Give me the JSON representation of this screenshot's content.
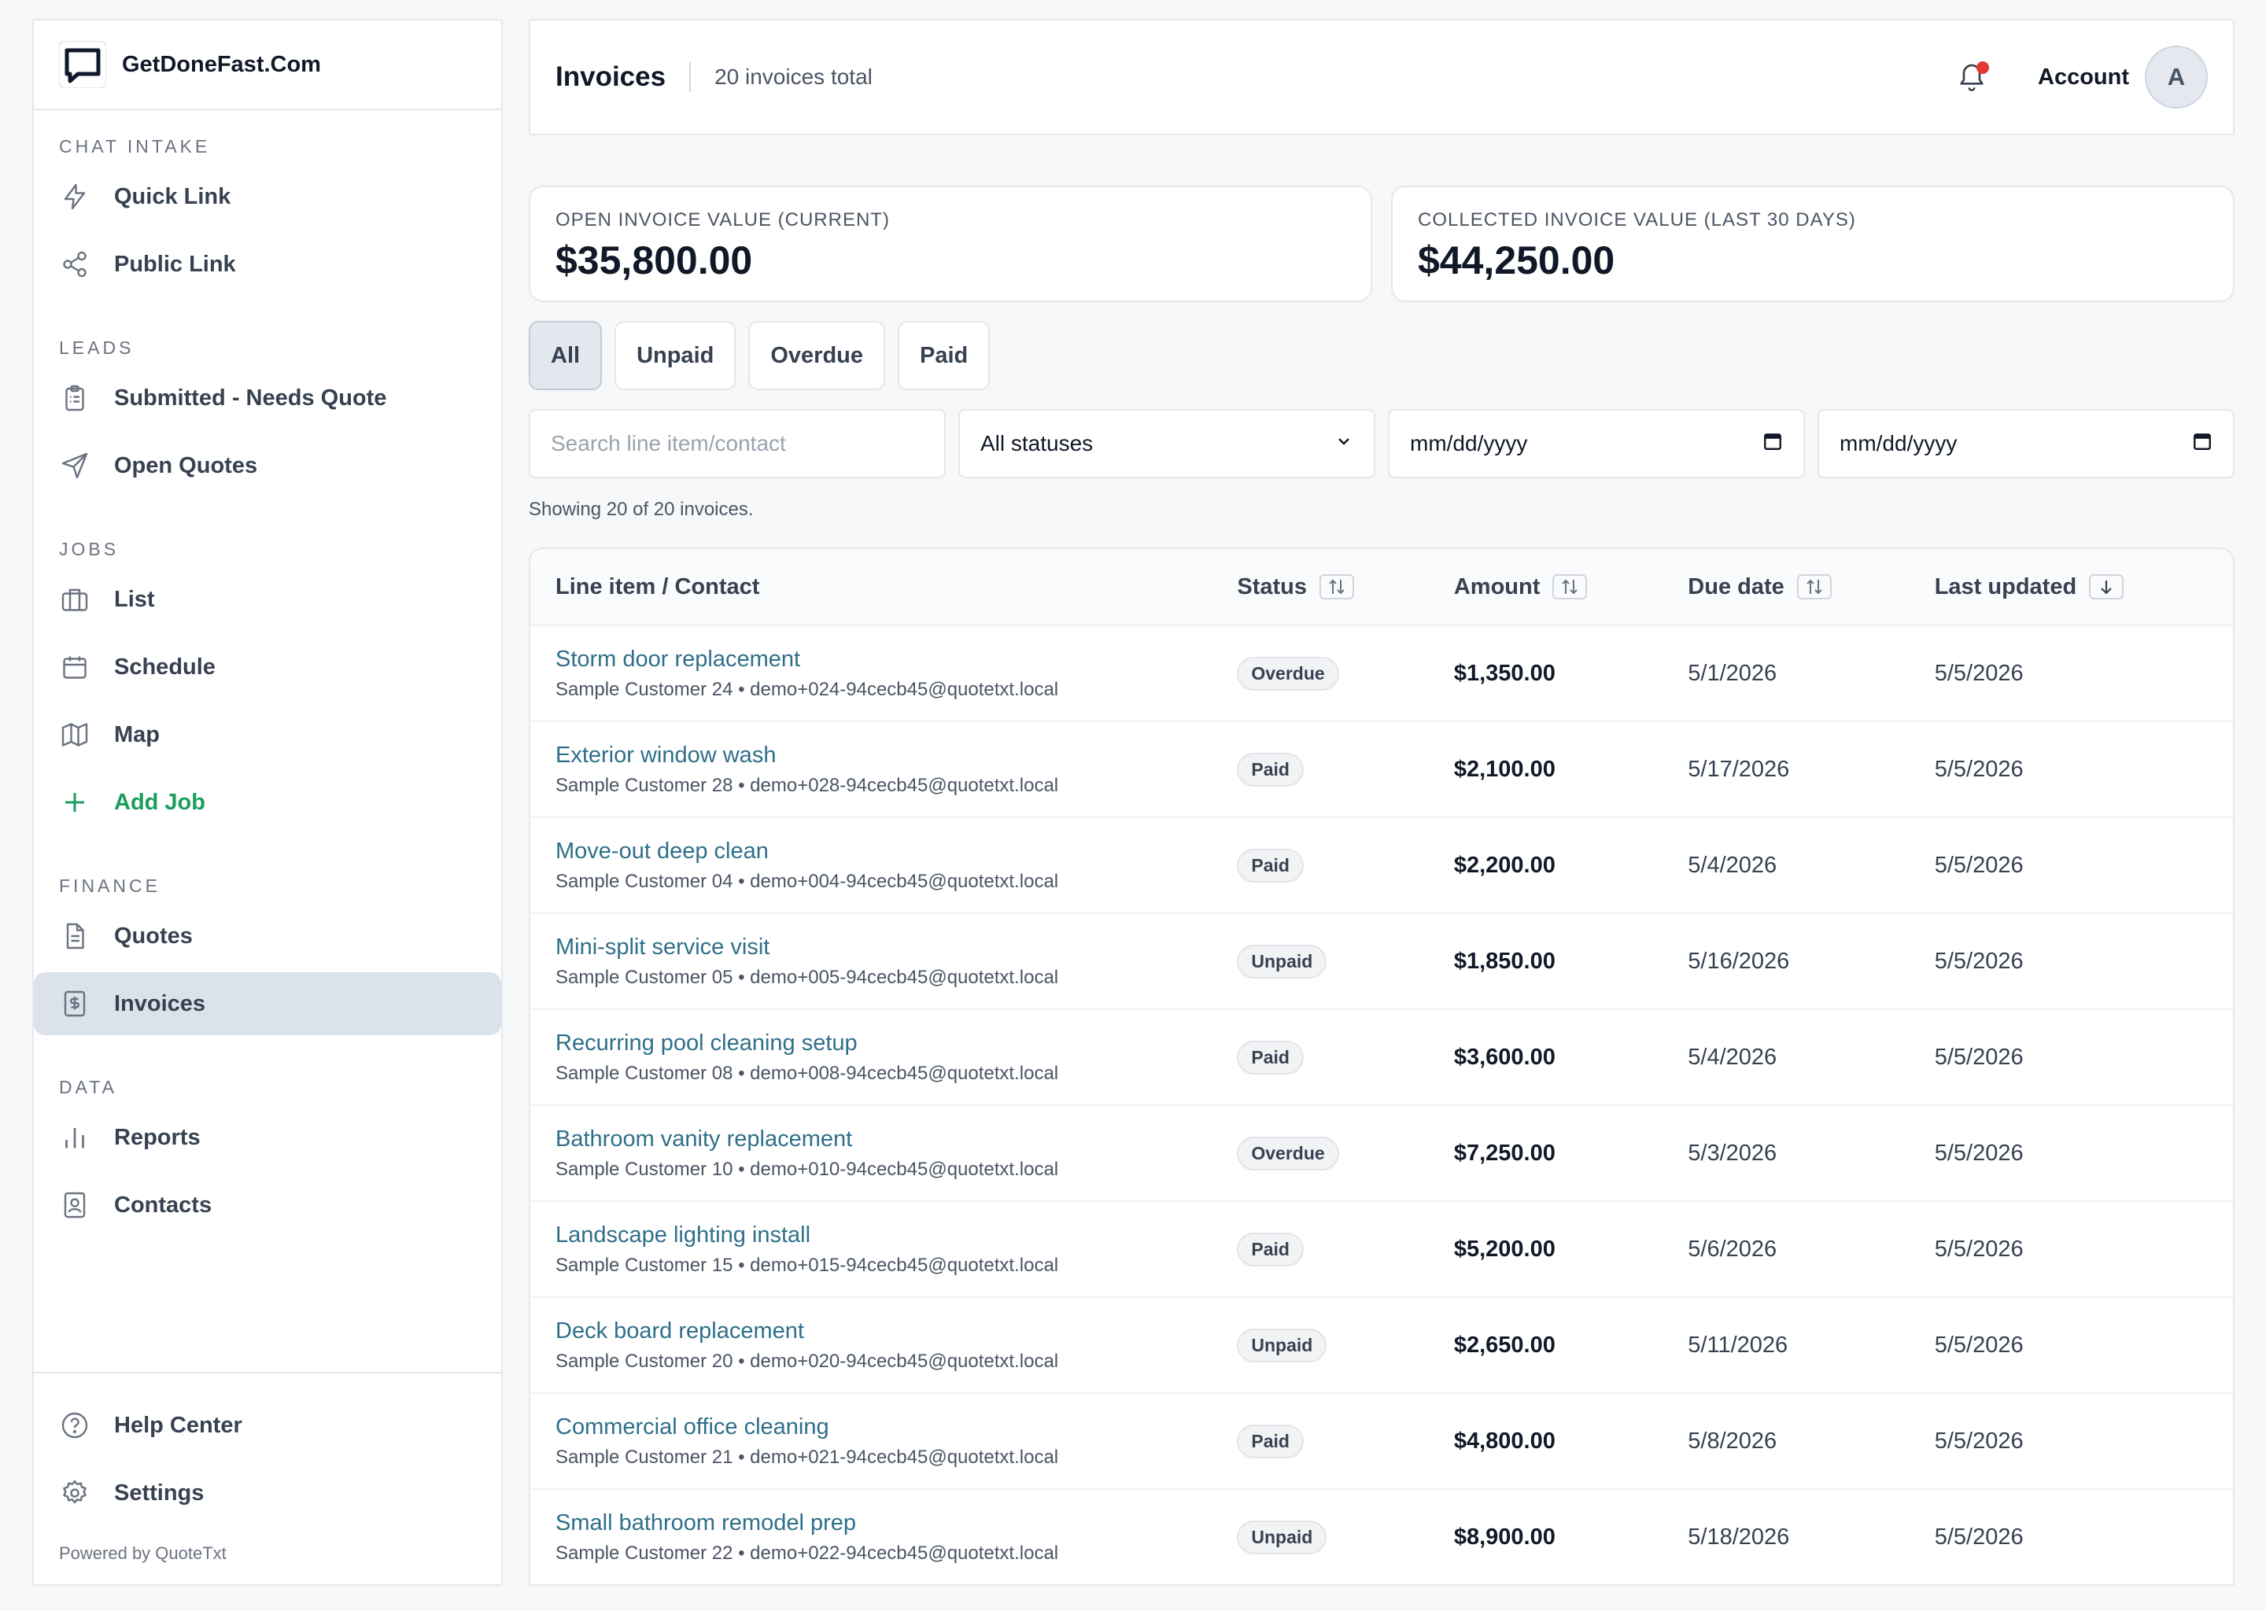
{
  "brand": {
    "name": "GetDoneFast.Com",
    "logo_icon": "chat-bubble-icon"
  },
  "sidebar": {
    "sections": [
      {
        "label": "CHAT INTAKE",
        "items": [
          {
            "label": "Quick Link",
            "icon": "lightning-icon"
          },
          {
            "label": "Public Link",
            "icon": "share-icon"
          }
        ]
      },
      {
        "label": "LEADS",
        "items": [
          {
            "label": "Submitted - Needs Quote",
            "icon": "clipboard-icon"
          },
          {
            "label": "Open Quotes",
            "icon": "send-icon"
          }
        ]
      },
      {
        "label": "JOBS",
        "items": [
          {
            "label": "List",
            "icon": "briefcase-icon"
          },
          {
            "label": "Schedule",
            "icon": "calendar-icon"
          },
          {
            "label": "Map",
            "icon": "map-icon"
          },
          {
            "label": "Add Job",
            "icon": "plus-icon"
          }
        ]
      },
      {
        "label": "FINANCE",
        "items": [
          {
            "label": "Quotes",
            "icon": "document-icon"
          },
          {
            "label": "Invoices",
            "icon": "dollar-icon"
          }
        ]
      },
      {
        "label": "DATA",
        "items": [
          {
            "label": "Reports",
            "icon": "bar-chart-icon"
          },
          {
            "label": "Contacts",
            "icon": "contact-book-icon"
          }
        ]
      }
    ],
    "bottom": [
      {
        "label": "Help Center",
        "icon": "help-circle-icon"
      },
      {
        "label": "Settings",
        "icon": "gear-icon"
      }
    ],
    "powered_by": "Powered by QuoteTxt",
    "active_item": "Invoices",
    "accent_green": "#1a9e5c"
  },
  "header": {
    "title": "Invoices",
    "subtitle": "20 invoices total",
    "account_label": "Account",
    "avatar_initial": "A"
  },
  "stats": {
    "open": {
      "label": "OPEN INVOICE VALUE (CURRENT)",
      "value": "$35,800.00"
    },
    "collected": {
      "label": "COLLECTED INVOICE VALUE (LAST 30 DAYS)",
      "value": "$44,250.00"
    }
  },
  "tabs": [
    "All",
    "Unpaid",
    "Overdue",
    "Paid"
  ],
  "filters": {
    "search_placeholder": "Search line item/contact",
    "status_value": "All statuses",
    "date_from": "mm/dd/yyyy",
    "date_to": "mm/dd/yyyy"
  },
  "showing_text": "Showing 20 of 20 invoices.",
  "table": {
    "columns": {
      "line_item": "Line item / Contact",
      "status": "Status",
      "amount": "Amount",
      "due_date": "Due date",
      "last_updated": "Last updated"
    },
    "rows": [
      {
        "title": "Storm door replacement",
        "contact": "Sample Customer 24 • demo+024-94cecb45@quotetxt.local",
        "status": "Overdue",
        "amount": "$1,350.00",
        "due": "5/1/2026",
        "updated": "5/5/2026"
      },
      {
        "title": "Exterior window wash",
        "contact": "Sample Customer 28 • demo+028-94cecb45@quotetxt.local",
        "status": "Paid",
        "amount": "$2,100.00",
        "due": "5/17/2026",
        "updated": "5/5/2026"
      },
      {
        "title": "Move-out deep clean",
        "contact": "Sample Customer 04 • demo+004-94cecb45@quotetxt.local",
        "status": "Paid",
        "amount": "$2,200.00",
        "due": "5/4/2026",
        "updated": "5/5/2026"
      },
      {
        "title": "Mini-split service visit",
        "contact": "Sample Customer 05 • demo+005-94cecb45@quotetxt.local",
        "status": "Unpaid",
        "amount": "$1,850.00",
        "due": "5/16/2026",
        "updated": "5/5/2026"
      },
      {
        "title": "Recurring pool cleaning setup",
        "contact": "Sample Customer 08 • demo+008-94cecb45@quotetxt.local",
        "status": "Paid",
        "amount": "$3,600.00",
        "due": "5/4/2026",
        "updated": "5/5/2026"
      },
      {
        "title": "Bathroom vanity replacement",
        "contact": "Sample Customer 10 • demo+010-94cecb45@quotetxt.local",
        "status": "Overdue",
        "amount": "$7,250.00",
        "due": "5/3/2026",
        "updated": "5/5/2026"
      },
      {
        "title": "Landscape lighting install",
        "contact": "Sample Customer 15 • demo+015-94cecb45@quotetxt.local",
        "status": "Paid",
        "amount": "$5,200.00",
        "due": "5/6/2026",
        "updated": "5/5/2026"
      },
      {
        "title": "Deck board replacement",
        "contact": "Sample Customer 20 • demo+020-94cecb45@quotetxt.local",
        "status": "Unpaid",
        "amount": "$2,650.00",
        "due": "5/11/2026",
        "updated": "5/5/2026"
      },
      {
        "title": "Commercial office cleaning",
        "contact": "Sample Customer 21 • demo+021-94cecb45@quotetxt.local",
        "status": "Paid",
        "amount": "$4,800.00",
        "due": "5/8/2026",
        "updated": "5/5/2026"
      },
      {
        "title": "Small bathroom remodel prep",
        "contact": "Sample Customer 22 • demo+022-94cecb45@quotetxt.local",
        "status": "Unpaid",
        "amount": "$8,900.00",
        "due": "5/18/2026",
        "updated": "5/5/2026"
      }
    ]
  }
}
